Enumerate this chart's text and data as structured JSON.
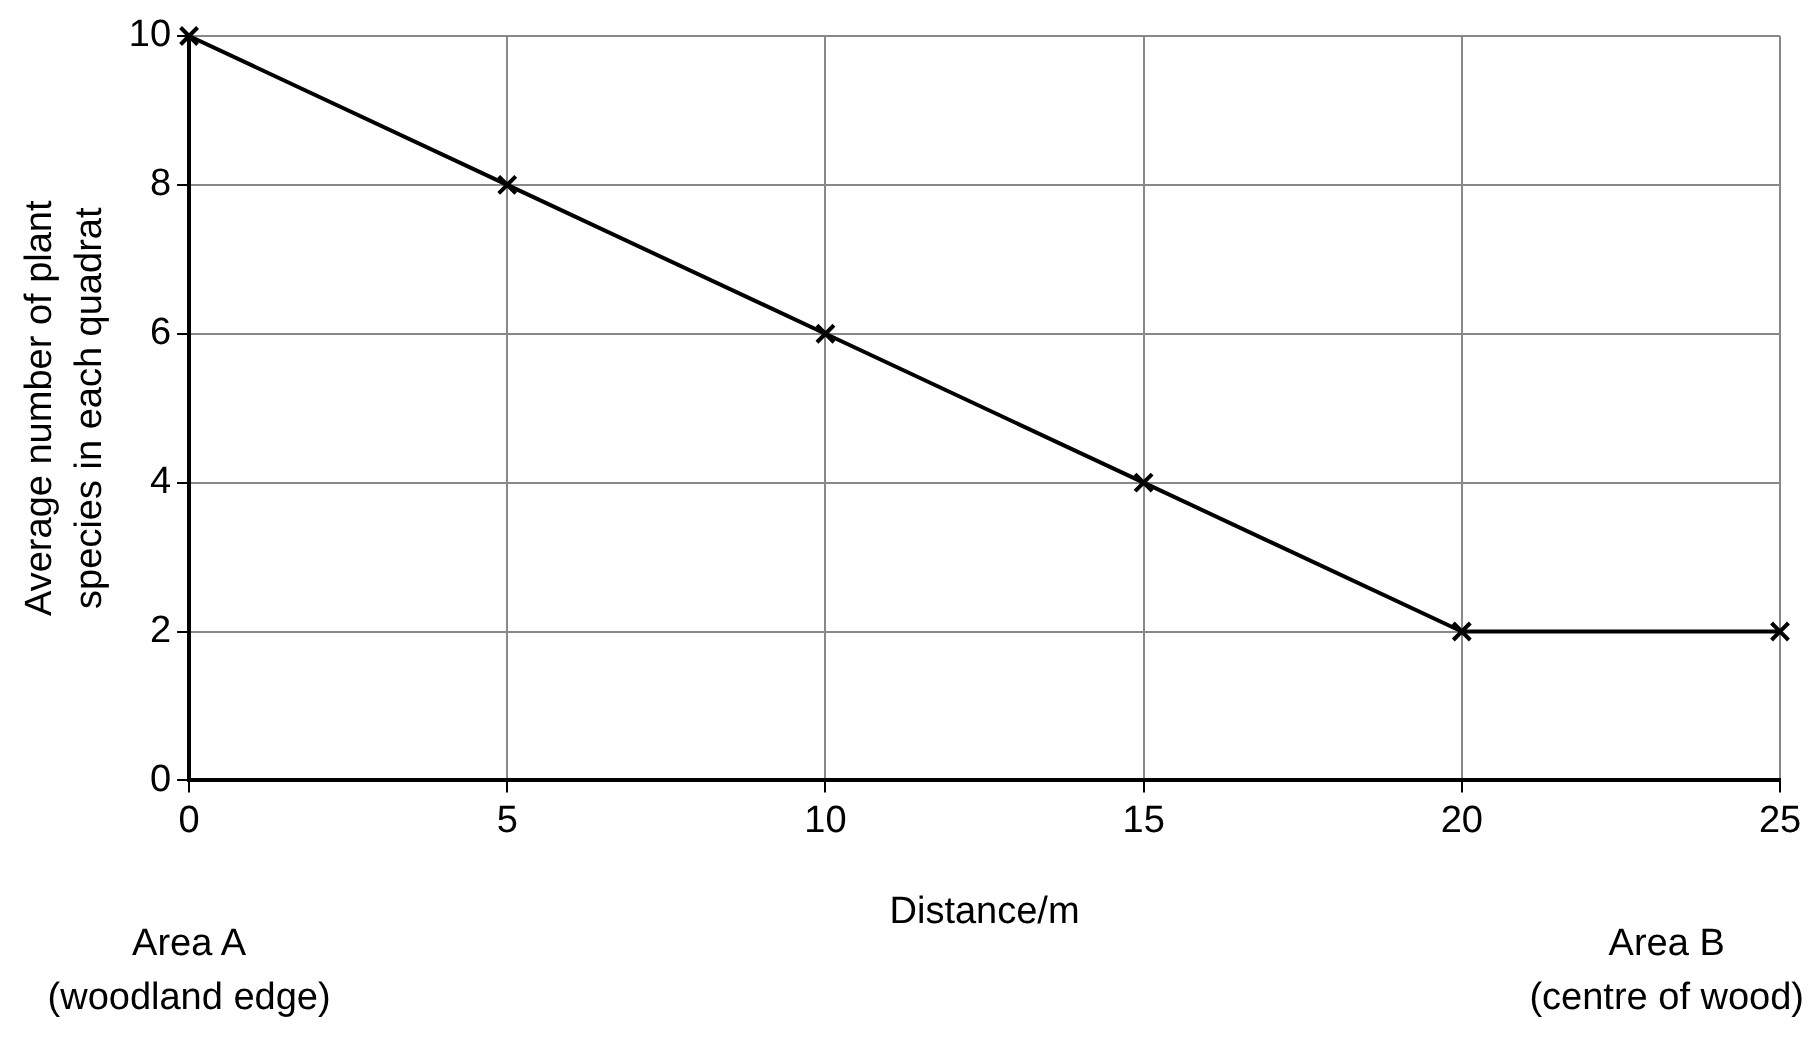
{
  "chart_data": {
    "type": "line",
    "xlabel": "Distance/m",
    "ylabel": "Average number of plant species in each quadrat",
    "x": [
      0,
      5,
      10,
      15,
      20,
      25
    ],
    "series": [
      {
        "color": "#000000",
        "values": [
          10,
          8,
          6,
          4,
          2,
          2
        ]
      }
    ],
    "xlim": [
      0,
      25
    ],
    "xticks": [
      0,
      5,
      10,
      15,
      20,
      25
    ],
    "ylim": [
      0,
      10
    ],
    "yticks": [
      0,
      2,
      4,
      6,
      8,
      10
    ],
    "grid": true,
    "legend": false,
    "marker": "cross",
    "line_style": "solid",
    "annotations": [
      "Area A\n(woodland edge)",
      "Area B\n(centre of wood)"
    ]
  }
}
